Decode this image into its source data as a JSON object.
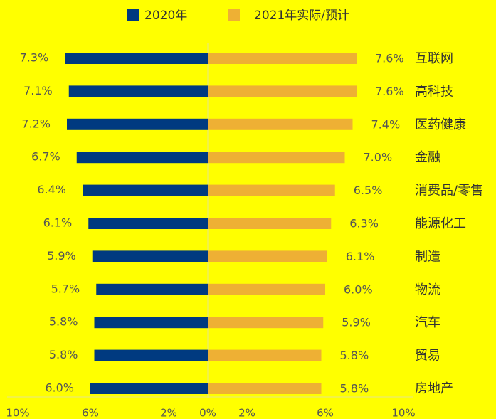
{
  "chart_data": {
    "type": "bar",
    "orientation": "horizontal",
    "categories": [
      "互联网",
      "高科技",
      "医药健康",
      "金融",
      "消费品/零售",
      "能源化工",
      "制造",
      "物流",
      "汽车",
      "贸易",
      "房地产"
    ],
    "series": [
      {
        "name": "2020年",
        "color": "#003a80",
        "side": "left",
        "values": [
          7.3,
          7.1,
          7.2,
          6.7,
          6.4,
          6.1,
          5.9,
          5.7,
          5.8,
          5.8,
          6.0
        ],
        "value_labels": [
          "7.3%",
          "7.1%",
          "7.2%",
          "6.7%",
          "6.4%",
          "6.1%",
          "5.9%",
          "5.7%",
          "5.8%",
          "5.8%",
          "6.0%"
        ]
      },
      {
        "name": "2021年实际/预计",
        "color": "#eeb034",
        "side": "right",
        "values": [
          7.6,
          7.6,
          7.4,
          7.0,
          6.5,
          6.3,
          6.1,
          6.0,
          5.9,
          5.8,
          5.8
        ],
        "value_labels": [
          "7.6%",
          "7.6%",
          "7.4%",
          "7.0%",
          "6.5%",
          "6.3%",
          "6.1%",
          "6.0%",
          "5.9%",
          "5.8%",
          "5.8%"
        ]
      }
    ],
    "xlim": [
      0,
      10
    ],
    "xticks_left": [
      {
        "value": 10,
        "label": "10%"
      },
      {
        "value": 6,
        "label": "6%"
      },
      {
        "value": 2,
        "label": "2%"
      },
      {
        "value": 0,
        "label": "0%"
      }
    ],
    "xticks_right": [
      {
        "value": 2,
        "label": "2%"
      },
      {
        "value": 6,
        "label": "6%"
      },
      {
        "value": 10,
        "label": "10%"
      }
    ]
  }
}
